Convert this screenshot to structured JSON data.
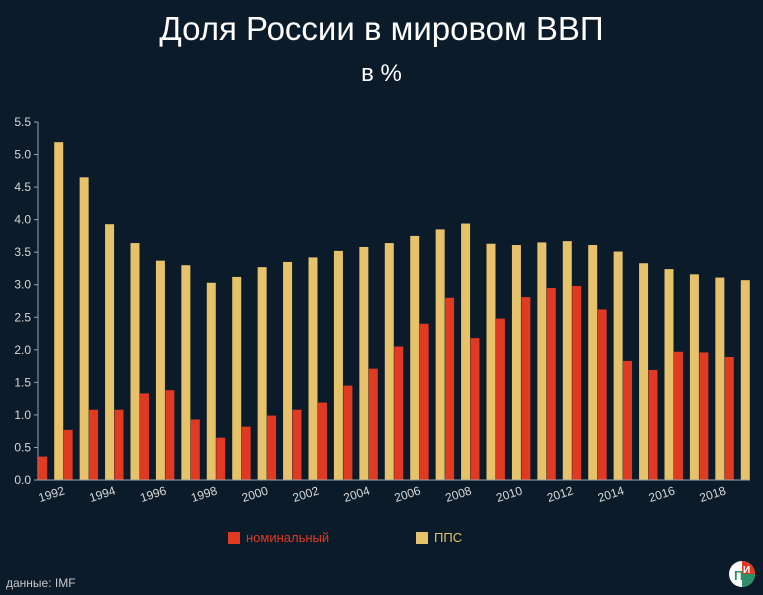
{
  "header": {
    "title": "Доля России в мировом ВВП",
    "subtitle": "в %"
  },
  "source": "данные: IMF",
  "logo": {
    "icon": "pi-logo-icon"
  },
  "colors": {
    "background": "#0c1b2a",
    "nominal": "#e03a22",
    "ppp": "#e6c26a",
    "legend_nominal_text": "#e03a22",
    "legend_ppp_text": "#e6c26a"
  },
  "legend": {
    "position": "bottom",
    "items": [
      {
        "name": "номинальный",
        "color": "#e03a22"
      },
      {
        "name": "ППС",
        "color": "#e6c26a"
      }
    ]
  },
  "chart_data": {
    "type": "bar",
    "title": "Доля России в мировом ВВП",
    "subtitle": "в %",
    "xlabel": "",
    "ylabel": "",
    "ylim": [
      0,
      5.5
    ],
    "yticks": [
      "0.0",
      "0.5",
      "1.0",
      "1.5",
      "2.0",
      "2.5",
      "3.0",
      "3.5",
      "4.0",
      "4.5",
      "5.0",
      "5.5"
    ],
    "grid": false,
    "categories": [
      1992,
      1993,
      1994,
      1995,
      1996,
      1997,
      1998,
      1999,
      2000,
      2001,
      2002,
      2003,
      2004,
      2005,
      2006,
      2007,
      2008,
      2009,
      2010,
      2011,
      2012,
      2013,
      2014,
      2015,
      2016,
      2017,
      2018,
      2019
    ],
    "xtick_labels": [
      "1992",
      "1994",
      "1996",
      "1998",
      "2000",
      "2002",
      "2004",
      "2006",
      "2008",
      "2010",
      "2012",
      "2014",
      "2016",
      "2018"
    ],
    "series": [
      {
        "name": "номинальный",
        "color": "#e03a22",
        "values": [
          0.36,
          0.77,
          1.08,
          1.08,
          1.33,
          1.38,
          0.93,
          0.65,
          0.82,
          0.99,
          1.08,
          1.19,
          1.45,
          1.71,
          2.05,
          2.4,
          2.8,
          2.18,
          2.48,
          2.81,
          2.95,
          2.98,
          2.62,
          1.83,
          1.69,
          1.97,
          1.96,
          1.89
        ]
      },
      {
        "name": "ППС",
        "color": "#e6c26a",
        "values": [
          5.19,
          4.65,
          3.93,
          3.64,
          3.37,
          3.3,
          3.03,
          3.12,
          3.27,
          3.35,
          3.42,
          3.52,
          3.58,
          3.64,
          3.75,
          3.85,
          3.94,
          3.63,
          3.61,
          3.65,
          3.67,
          3.61,
          3.51,
          3.33,
          3.24,
          3.16,
          3.11,
          3.07
        ]
      }
    ]
  }
}
